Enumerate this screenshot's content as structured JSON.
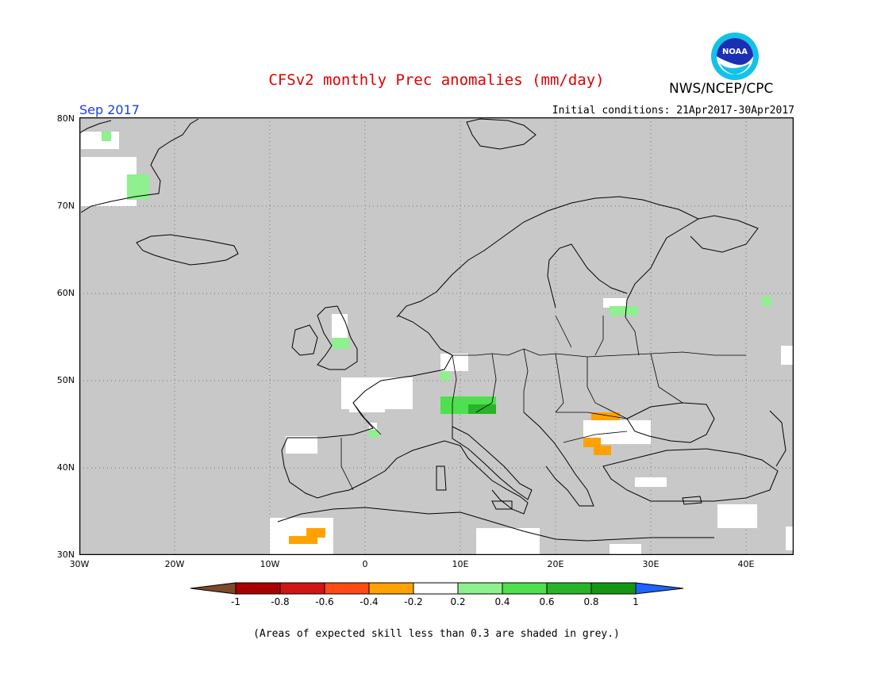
{
  "header": {
    "title": "CFSv2 monthly Prec anomalies (mm/day)",
    "agency": "NWS/NCEP/CPC",
    "logo_text": "NOAA",
    "month": "Sep 2017",
    "initial_conditions": "Initial conditions: 21Apr2017-30Apr2017"
  },
  "map": {
    "latitude_labels": [
      "80N",
      "70N",
      "60N",
      "50N",
      "40N",
      "30N"
    ],
    "longitude_labels": [
      "30W",
      "20W",
      "10W",
      "0",
      "10E",
      "20E",
      "30E",
      "40E"
    ],
    "background_color": "#c8c8c8",
    "region": "Europe"
  },
  "colorbar": {
    "labels": [
      "-1",
      "-0.8",
      "-0.6",
      "-0.4",
      "-0.2",
      "0.2",
      "0.4",
      "0.6",
      "0.8",
      "1"
    ],
    "colors": [
      "#7a4a2a",
      "#a80000",
      "#d11414",
      "#ff4a14",
      "#ffa200",
      "#ffffff",
      "#8ef08e",
      "#4ee04e",
      "#28b428",
      "#149614",
      "#1e64ff"
    ]
  },
  "footnote": "(Areas of expected skill less than 0.3 are shaded in grey.)"
}
